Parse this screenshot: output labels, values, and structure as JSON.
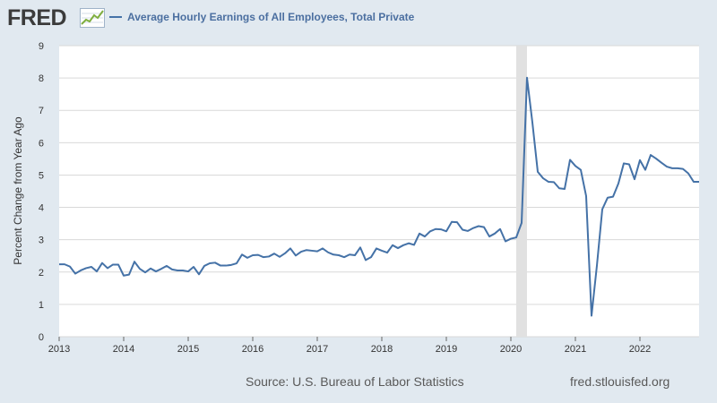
{
  "header": {
    "logo": "FRED",
    "legend_label": "Average Hourly Earnings of All Employees, Total Private"
  },
  "footer": {
    "source": "Source: U.S. Bureau of Labor Statistics",
    "site": "fred.stlouisfed.org"
  },
  "colors": {
    "series": "#4572a7",
    "background": "#e1e9f0",
    "plot_background": "#ffffff",
    "gridline": "#d9d9d9",
    "recession_band": "#e1e1e1"
  },
  "chart_data": {
    "type": "line",
    "title": "",
    "xlabel": "",
    "ylabel": "Percent Change from Year Ago",
    "ylim": [
      0,
      9
    ],
    "y_ticks": [
      0,
      1,
      2,
      3,
      4,
      5,
      6,
      7,
      8,
      9
    ],
    "x_ticks": [
      "2013",
      "2014",
      "2015",
      "2016",
      "2017",
      "2018",
      "2019",
      "2020",
      "2021",
      "2022"
    ],
    "xlim": [
      "2013-01",
      "2022-12"
    ],
    "grid": "horizontal",
    "legend": "top-left",
    "recession_shading": [
      {
        "start": "2020-02",
        "end": "2020-04"
      }
    ],
    "series": [
      {
        "name": "Average Hourly Earnings of All Employees, Total Private",
        "x": [
          "2013-01",
          "2013-02",
          "2013-03",
          "2013-04",
          "2013-05",
          "2013-06",
          "2013-07",
          "2013-08",
          "2013-09",
          "2013-10",
          "2013-11",
          "2013-12",
          "2014-01",
          "2014-02",
          "2014-03",
          "2014-04",
          "2014-05",
          "2014-06",
          "2014-07",
          "2014-08",
          "2014-09",
          "2014-10",
          "2014-11",
          "2014-12",
          "2015-01",
          "2015-02",
          "2015-03",
          "2015-04",
          "2015-05",
          "2015-06",
          "2015-07",
          "2015-08",
          "2015-09",
          "2015-10",
          "2015-11",
          "2015-12",
          "2016-01",
          "2016-02",
          "2016-03",
          "2016-04",
          "2016-05",
          "2016-06",
          "2016-07",
          "2016-08",
          "2016-09",
          "2016-10",
          "2016-11",
          "2016-12",
          "2017-01",
          "2017-02",
          "2017-03",
          "2017-04",
          "2017-05",
          "2017-06",
          "2017-07",
          "2017-08",
          "2017-09",
          "2017-10",
          "2017-11",
          "2017-12",
          "2018-01",
          "2018-02",
          "2018-03",
          "2018-04",
          "2018-05",
          "2018-06",
          "2018-07",
          "2018-08",
          "2018-09",
          "2018-10",
          "2018-11",
          "2018-12",
          "2019-01",
          "2019-02",
          "2019-03",
          "2019-04",
          "2019-05",
          "2019-06",
          "2019-07",
          "2019-08",
          "2019-09",
          "2019-10",
          "2019-11",
          "2019-12",
          "2020-01",
          "2020-02",
          "2020-03",
          "2020-04",
          "2020-05",
          "2020-06",
          "2020-07",
          "2020-08",
          "2020-09",
          "2020-10",
          "2020-11",
          "2020-12",
          "2021-01",
          "2021-02",
          "2021-03",
          "2021-04",
          "2021-05",
          "2021-06",
          "2021-07",
          "2021-08",
          "2021-09",
          "2021-10",
          "2021-11",
          "2021-12",
          "2022-01",
          "2022-02",
          "2022-03",
          "2022-04",
          "2022-05",
          "2022-06",
          "2022-07",
          "2022-08",
          "2022-09",
          "2022-10",
          "2022-11",
          "2022-12"
        ],
        "values": [
          2.24,
          2.24,
          2.17,
          1.95,
          2.05,
          2.12,
          2.16,
          2.02,
          2.28,
          2.12,
          2.23,
          2.23,
          1.89,
          1.92,
          2.32,
          2.1,
          1.99,
          2.11,
          2.02,
          2.1,
          2.19,
          2.08,
          2.05,
          2.05,
          2.02,
          2.16,
          1.93,
          2.19,
          2.27,
          2.29,
          2.2,
          2.2,
          2.22,
          2.27,
          2.54,
          2.44,
          2.52,
          2.53,
          2.46,
          2.48,
          2.57,
          2.47,
          2.58,
          2.73,
          2.51,
          2.63,
          2.68,
          2.66,
          2.64,
          2.73,
          2.61,
          2.54,
          2.52,
          2.46,
          2.54,
          2.52,
          2.76,
          2.37,
          2.46,
          2.73,
          2.66,
          2.6,
          2.83,
          2.74,
          2.83,
          2.89,
          2.84,
          3.19,
          3.1,
          3.26,
          3.33,
          3.32,
          3.26,
          3.55,
          3.54,
          3.31,
          3.27,
          3.36,
          3.42,
          3.39,
          3.1,
          3.19,
          3.33,
          2.95,
          3.03,
          3.07,
          3.52,
          8.01,
          6.63,
          5.1,
          4.9,
          4.79,
          4.78,
          4.59,
          4.57,
          5.47,
          5.28,
          5.16,
          4.35,
          0.65,
          2.2,
          3.94,
          4.3,
          4.33,
          4.74,
          5.36,
          5.33,
          4.87,
          5.46,
          5.16,
          5.62,
          5.51,
          5.38,
          5.26,
          5.21,
          5.21,
          5.19,
          5.05,
          4.79,
          4.79
        ]
      }
    ]
  }
}
